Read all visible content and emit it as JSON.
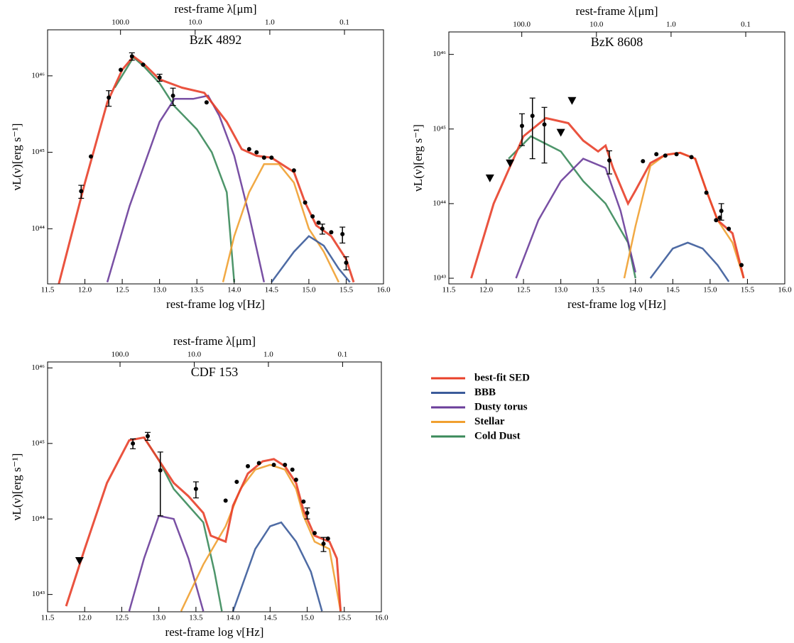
{
  "chart_data": [
    {
      "type": "line",
      "title": "BzK 4892",
      "xlabel": "rest-frame log ν[Hz]",
      "ylabel": "νL(ν)[erg s⁻¹]",
      "x2label": "rest-frame λ[μm]",
      "xlim": [
        11.5,
        16.0
      ],
      "xticks": [
        {
          "value": 11.5,
          "label": "11.5"
        },
        {
          "value": 12,
          "label": "12.0"
        },
        {
          "value": 12.5,
          "label": "12.5"
        },
        {
          "value": 13,
          "label": "13.0"
        },
        {
          "value": 13.5,
          "label": "13.5"
        },
        {
          "value": 14,
          "label": "14.0"
        },
        {
          "value": 14.5,
          "label": "14.5"
        },
        {
          "value": 15,
          "label": "15.0"
        },
        {
          "value": 15.5,
          "label": "15.5"
        },
        {
          "value": 16,
          "label": "16.0"
        }
      ],
      "x2lim": [
        948,
        0.03
      ],
      "x2scale": "log",
      "x2ticks": [
        {
          "value": 100,
          "label": "100.0"
        },
        {
          "value": 10,
          "label": "10.0"
        },
        {
          "value": 1,
          "label": "1.0"
        },
        {
          "value": 0.1,
          "label": "0.1"
        }
      ],
      "ylim": [
        1.9e+43,
        4e+46
      ],
      "yscale": "log",
      "yticks": [
        {
          "value": 1e+44,
          "label": "10⁴⁴"
        },
        {
          "value": 1e+45,
          "label": "10⁴⁵"
        },
        {
          "value": 1e+46,
          "label": "10⁴⁶"
        }
      ],
      "series": [
        {
          "name": "best-fit SED",
          "color": "#e8402a",
          "x": [
            11.65,
            12.0,
            12.3,
            12.5,
            12.65,
            12.8,
            13.0,
            13.3,
            13.6,
            13.9,
            14.1,
            14.3,
            14.5,
            14.8,
            14.95,
            15.1,
            15.3,
            15.5,
            15.6
          ],
          "values": [
            1.9e+43,
            4e+44,
            4.5e+45,
            1.2e+46,
            1.8e+46,
            1.4e+46,
            9e+45,
            7e+45,
            6e+45,
            2.5e+45,
            1.1e+45,
            9e+44,
            8.5e+44,
            5.5e+44,
            2.2e+44,
            1.1e+44,
            8e+43,
            4e+43,
            2e+43
          ]
        },
        {
          "name": "BBB",
          "color": "#3b5b9a",
          "x": [
            14.5,
            14.8,
            15.0,
            15.2,
            15.4,
            15.55
          ],
          "values": [
            2e+43,
            5e+43,
            8e+43,
            6e+43,
            3e+43,
            2e+43
          ]
        },
        {
          "name": "Dusty torus",
          "color": "#6a3d9a",
          "x": [
            12.3,
            12.6,
            13.0,
            13.2,
            13.45,
            13.65,
            13.8,
            14.0,
            14.2,
            14.4
          ],
          "values": [
            2e+43,
            2e+44,
            2.5e+45,
            5e+45,
            5e+45,
            5.5e+45,
            3e+45,
            9e+44,
            1.5e+44,
            2e+43
          ]
        },
        {
          "name": "Stellar",
          "color": "#f0a030",
          "x": [
            13.85,
            14.0,
            14.2,
            14.4,
            14.6,
            14.8,
            15.0,
            15.2,
            15.4
          ],
          "values": [
            2e+43,
            8e+43,
            3e+44,
            7e+44,
            7e+44,
            4e+44,
            1e+44,
            5e+43,
            2e+43
          ]
        },
        {
          "name": "Cold Dust",
          "color": "#3a8a5a",
          "x": [
            12.4,
            12.65,
            12.8,
            13.0,
            13.2,
            13.5,
            13.7,
            13.9,
            14.0
          ],
          "values": [
            7e+45,
            1.75e+46,
            1.3e+46,
            8e+45,
            4e+45,
            2e+45,
            1e+45,
            3e+44,
            2e+43
          ]
        }
      ],
      "points": {
        "x": [
          11.95,
          12.08,
          12.32,
          12.48,
          12.63,
          12.78,
          13.0,
          13.18,
          13.63,
          14.2,
          14.3,
          14.4,
          14.5,
          14.8,
          14.95,
          15.05,
          15.13,
          15.18,
          15.3,
          15.45,
          15.5
        ],
        "values": [
          3.1e+44,
          8.8e+44,
          5.2e+45,
          1.2e+46,
          1.8e+46,
          1.4e+46,
          9.5e+45,
          5.5e+45,
          4.5e+45,
          1.1e+45,
          1e+45,
          8.5e+44,
          8.5e+44,
          5.8e+44,
          2.2e+44,
          1.45e+44,
          1.2e+44,
          1e+44,
          9e+43,
          8.5e+43,
          3.6e+43
        ],
        "errors": [
          6e+43,
          null,
          1.2e+45,
          null,
          2e+45,
          null,
          1e+45,
          1.4e+45,
          null,
          null,
          null,
          null,
          null,
          null,
          null,
          null,
          null,
          1.5e+43,
          null,
          2e+43,
          7e+42
        ]
      },
      "upper_limits": {
        "x": [],
        "values": []
      }
    },
    {
      "type": "line",
      "title": "BzK 8608",
      "xlabel": "rest-frame log ν[Hz]",
      "ylabel": "νL(ν)[erg s⁻¹]",
      "x2label": "rest-frame λ[μm]",
      "xlim": [
        11.5,
        16.0
      ],
      "xticks": [
        {
          "value": 11.5,
          "label": "11.5"
        },
        {
          "value": 12,
          "label": "12.0"
        },
        {
          "value": 12.5,
          "label": "12.5"
        },
        {
          "value": 13,
          "label": "13.0"
        },
        {
          "value": 13.5,
          "label": "13.5"
        },
        {
          "value": 14,
          "label": "14.0"
        },
        {
          "value": 14.5,
          "label": "14.5"
        },
        {
          "value": 15,
          "label": "15.0"
        },
        {
          "value": 15.5,
          "label": "15.5"
        },
        {
          "value": 16,
          "label": "16.0"
        }
      ],
      "x2lim": [
        948,
        0.03
      ],
      "x2scale": "log",
      "x2ticks": [
        {
          "value": 100,
          "label": "100.0"
        },
        {
          "value": 10,
          "label": "10.0"
        },
        {
          "value": 1,
          "label": "1.0"
        },
        {
          "value": 0.1,
          "label": "0.1"
        }
      ],
      "ylim": [
        8.4e+42,
        2e+46
      ],
      "yscale": "log",
      "yticks": [
        {
          "value": 1e+43,
          "label": "10⁴³"
        },
        {
          "value": 1e+44,
          "label": "10⁴⁴"
        },
        {
          "value": 1e+45,
          "label": "10⁴⁵"
        },
        {
          "value": 1e+46,
          "label": "10⁴⁶"
        }
      ],
      "series": [
        {
          "name": "best-fit SED",
          "color": "#e8402a",
          "x": [
            11.8,
            12.1,
            12.5,
            12.8,
            13.1,
            13.3,
            13.5,
            13.6,
            13.7,
            13.9,
            14.0,
            14.2,
            14.4,
            14.6,
            14.8,
            14.95,
            15.1,
            15.3,
            15.45
          ],
          "values": [
            1e+43,
            1e+44,
            8e+44,
            1.4e+45,
            1.2e+45,
            7e+44,
            5e+44,
            6e+44,
            3e+44,
            1e+44,
            1.5e+44,
            3.5e+44,
            4.5e+44,
            4.8e+44,
            4e+44,
            1.5e+44,
            6e+43,
            4e+43,
            1e+43
          ]
        },
        {
          "name": "BBB",
          "color": "#3b5b9a",
          "x": [
            14.2,
            14.5,
            14.7,
            14.9,
            15.1,
            15.25
          ],
          "values": [
            1e+43,
            2.5e+43,
            3e+43,
            2.5e+43,
            1.5e+43,
            9e+42
          ]
        },
        {
          "name": "Dusty torus",
          "color": "#6a3d9a",
          "x": [
            12.4,
            12.7,
            13.0,
            13.3,
            13.6,
            13.8,
            14.0
          ],
          "values": [
            1e+43,
            6e+43,
            2e+44,
            4e+44,
            3e+44,
            8e+43,
            1.2e+43
          ]
        },
        {
          "name": "Stellar",
          "color": "#f0a030",
          "x": [
            13.85,
            14.0,
            14.2,
            14.4,
            14.6,
            14.8,
            14.95,
            15.1,
            15.3,
            15.45
          ],
          "values": [
            1e+43,
            5e+43,
            3.2e+44,
            4.5e+44,
            4.8e+44,
            4e+44,
            1.5e+44,
            6e+43,
            3e+43,
            1e+43
          ]
        },
        {
          "name": "Cold Dust",
          "color": "#3a8a5a",
          "x": [
            12.3,
            12.6,
            13.0,
            13.3,
            13.6,
            13.9,
            14.0
          ],
          "values": [
            4e+44,
            8e+44,
            5e+44,
            2e+44,
            1e+44,
            3e+43,
            1e+43
          ]
        }
      ],
      "points": {
        "x": [
          12.48,
          12.62,
          12.78,
          13.65,
          14.1,
          14.28,
          14.4,
          14.55,
          14.75,
          14.95,
          15.08,
          15.13,
          15.15,
          15.25,
          15.42
        ],
        "values": [
          1.1e+45,
          1.5e+45,
          1.15e+45,
          3.8e+44,
          3.7e+44,
          4.6e+44,
          4.4e+44,
          4.6e+44,
          4.2e+44,
          1.4e+44,
          6e+43,
          6.5e+43,
          8e+43,
          4.6e+43,
          1.5e+43
        ],
        "errors": [
          5e+44,
          1.1e+45,
          8e+44,
          1.3e+44,
          null,
          null,
          null,
          null,
          null,
          null,
          null,
          null,
          2e+43,
          null,
          null
        ]
      },
      "upper_limits": {
        "x": [
          12.05,
          12.32,
          13.0,
          13.15
        ],
        "values": [
          2.2e+44,
          3.5e+44,
          9e+44,
          2.4e+45
        ]
      }
    },
    {
      "type": "line",
      "title": "CDF 153",
      "xlabel": "rest-frame log ν[Hz]",
      "ylabel": "νL(ν)[erg s⁻¹]",
      "x2label": "rest-frame λ[μm]",
      "xlim": [
        11.5,
        16.0
      ],
      "xticks": [
        {
          "value": 11.5,
          "label": "11.5"
        },
        {
          "value": 12,
          "label": "12.0"
        },
        {
          "value": 12.5,
          "label": "12.5"
        },
        {
          "value": 13,
          "label": "13.0"
        },
        {
          "value": 13.5,
          "label": "13.5"
        },
        {
          "value": 14,
          "label": "14.0"
        },
        {
          "value": 14.5,
          "label": "14.5"
        },
        {
          "value": 15,
          "label": "15.0"
        },
        {
          "value": 15.5,
          "label": "15.5"
        },
        {
          "value": 16,
          "label": "16.0"
        }
      ],
      "x2lim": [
        948,
        0.03
      ],
      "x2scale": "log",
      "x2ticks": [
        {
          "value": 100,
          "label": "100.0"
        },
        {
          "value": 10,
          "label": "10.0"
        },
        {
          "value": 1,
          "label": "1.0"
        },
        {
          "value": 0.1,
          "label": "0.1"
        }
      ],
      "ylim": [
        5.9e+42,
        1.2e+46
      ],
      "yscale": "log",
      "yticks": [
        {
          "value": 1e+43,
          "label": "10⁴³"
        },
        {
          "value": 1e+44,
          "label": "10⁴⁴"
        },
        {
          "value": 1e+45,
          "label": "10⁴⁵"
        },
        {
          "value": 1e+46,
          "label": "10⁴⁶"
        }
      ],
      "series": [
        {
          "name": "best-fit SED",
          "color": "#e8402a",
          "x": [
            11.75,
            12.0,
            12.3,
            12.6,
            12.8,
            13.0,
            13.2,
            13.4,
            13.6,
            13.7,
            13.9,
            14.0,
            14.2,
            14.4,
            14.55,
            14.7,
            14.85,
            14.95,
            15.1,
            15.3,
            15.4,
            15.45
          ],
          "values": [
            7e+42,
            4e+43,
            3e+44,
            1.1e+45,
            1.2e+45,
            6e+44,
            3e+44,
            2e+44,
            1.2e+44,
            6e+43,
            5e+43,
            1.5e+44,
            4e+44,
            5.8e+44,
            6.2e+44,
            5e+44,
            3e+44,
            1.3e+44,
            6e+43,
            5e+43,
            3e+43,
            6e+42
          ]
        },
        {
          "name": "BBB",
          "color": "#3b5b9a",
          "x": [
            14.0,
            14.3,
            14.5,
            14.65,
            14.85,
            15.05,
            15.2
          ],
          "values": [
            6e+42,
            4e+43,
            8e+43,
            9e+43,
            5e+43,
            2e+43,
            6e+42
          ]
        },
        {
          "name": "Dusty torus",
          "color": "#6a3d9a",
          "x": [
            12.6,
            12.8,
            13.0,
            13.2,
            13.4,
            13.6
          ],
          "values": [
            6e+42,
            3e+43,
            1.1e+44,
            1e+44,
            3e+43,
            6e+42
          ]
        },
        {
          "name": "Stellar",
          "color": "#f0a030",
          "x": [
            13.3,
            13.6,
            13.9,
            14.1,
            14.3,
            14.5,
            14.7,
            14.85,
            14.95,
            15.1,
            15.3,
            15.45
          ],
          "values": [
            6e+42,
            2.5e+43,
            8e+43,
            2.5e+44,
            4.5e+44,
            5.2e+44,
            4.5e+44,
            2.5e+44,
            1.1e+44,
            5e+43,
            4e+43,
            6e+42
          ]
        },
        {
          "name": "Cold Dust",
          "color": "#3a8a5a",
          "x": [
            12.8,
            13.0,
            13.2,
            13.4,
            13.6,
            13.75,
            13.85
          ],
          "values": [
            1.2e+45,
            6e+44,
            2.5e+44,
            1.5e+44,
            9e+43,
            2e+43,
            6e+42
          ]
        }
      ],
      "points": {
        "x": [
          12.65,
          12.85,
          13.02,
          13.5,
          13.9,
          14.05,
          14.2,
          14.35,
          14.55,
          14.7,
          14.8,
          14.85,
          14.95,
          15.0,
          15.1,
          15.22,
          15.28
        ],
        "values": [
          1e+45,
          1.25e+45,
          4.4e+44,
          2.5e+44,
          1.75e+44,
          3.1e+44,
          5e+44,
          5.5e+44,
          5.2e+44,
          5.2e+44,
          4.5e+44,
          3.3e+44,
          1.7e+44,
          1.2e+44,
          6.5e+43,
          4.7e+43,
          5.5e+43
        ],
        "errors": [
          1.5e+44,
          1.5e+44,
          3.3e+44,
          6e+43,
          null,
          null,
          null,
          null,
          null,
          null,
          null,
          null,
          null,
          2e+43,
          null,
          1e+43,
          null
        ]
      },
      "upper_limits": {
        "x": [
          11.93
        ],
        "values": [
          2.8e+43
        ]
      }
    }
  ]
}
